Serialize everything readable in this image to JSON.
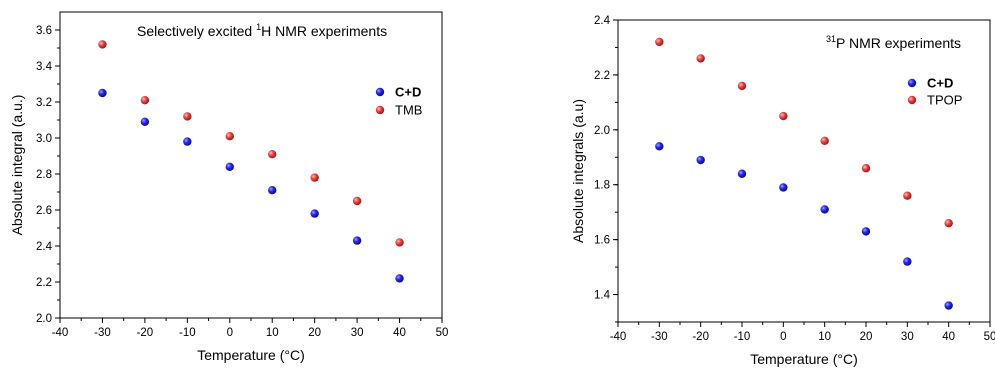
{
  "chart_data": [
    {
      "type": "scatter",
      "title": "Selectively excited ¹H NMR experiments",
      "title_parts": {
        "pre": "Selectively excited ",
        "sup": "1",
        "post": "H NMR experiments"
      },
      "xlabel": "Temperature (°C)",
      "ylabel": "Absolute integral (a.u.)",
      "xlim": [
        -40,
        50
      ],
      "ylim": [
        2.0,
        3.7
      ],
      "xticks": [
        "-40",
        "-30",
        "-20",
        "-10",
        "0",
        "10",
        "20",
        "30",
        "40",
        "50"
      ],
      "yticks": [
        "2.0",
        "2.2",
        "2.4",
        "2.6",
        "2.8",
        "3.0",
        "3.2",
        "3.4",
        "3.6"
      ],
      "grid": false,
      "legend_position": "right",
      "x": [
        -30,
        -20,
        -10,
        0,
        10,
        20,
        30,
        40
      ],
      "series": [
        {
          "name": "C+D",
          "color": "#1f1fdc",
          "bold": true,
          "values": [
            3.25,
            3.09,
            2.98,
            2.84,
            2.71,
            2.58,
            2.43,
            2.22
          ]
        },
        {
          "name": "TMB",
          "color": "#e03a3a",
          "bold": false,
          "values": [
            3.52,
            3.21,
            3.12,
            3.01,
            2.91,
            2.78,
            2.65,
            2.42
          ]
        }
      ]
    },
    {
      "type": "scatter",
      "title": "³¹P NMR experiments",
      "title_parts": {
        "pre": "",
        "sup": "31",
        "post": "P NMR experiments"
      },
      "xlabel": "Temperature (°C)",
      "ylabel": "Absolute integrals (a.u)",
      "xlim": [
        -40,
        50
      ],
      "ylim": [
        1.3,
        2.4
      ],
      "xticks": [
        "-40",
        "-30",
        "-20",
        "-10",
        "0",
        "10",
        "20",
        "30",
        "40",
        "50"
      ],
      "yticks": [
        "1.4",
        "1.6",
        "1.8",
        "2.0",
        "2.2",
        "2.4"
      ],
      "grid": false,
      "legend_position": "right",
      "x": [
        -30,
        -20,
        -10,
        0,
        10,
        20,
        30,
        40
      ],
      "series": [
        {
          "name": "C+D",
          "color": "#1f1fdc",
          "bold": true,
          "values": [
            1.94,
            1.89,
            1.84,
            1.79,
            1.71,
            1.63,
            1.52,
            1.36
          ]
        },
        {
          "name": "TPOP",
          "color": "#e03a3a",
          "bold": false,
          "values": [
            2.32,
            2.26,
            2.16,
            2.05,
            1.96,
            1.86,
            1.76,
            1.66
          ]
        }
      ]
    }
  ]
}
